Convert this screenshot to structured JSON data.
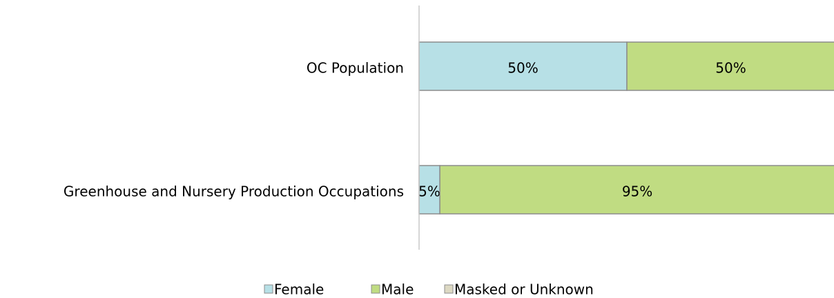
{
  "chart_data": {
    "type": "stacked_bar_horizontal",
    "categories": [
      "OC Population",
      "Greenhouse and Nursery Production Occupations"
    ],
    "series": [
      {
        "name": "Female",
        "color": "#b7e0e6",
        "values": [
          50,
          5
        ],
        "value_labels": [
          "50%",
          "5%"
        ]
      },
      {
        "name": "Male",
        "color": "#c0dc82",
        "values": [
          50,
          95
        ],
        "value_labels": [
          "50%",
          "95%"
        ]
      },
      {
        "name": "Masked or Unknown",
        "color": "#ddd9c3",
        "values": [
          0,
          0
        ]
      }
    ],
    "xlim": [
      0,
      100
    ]
  }
}
